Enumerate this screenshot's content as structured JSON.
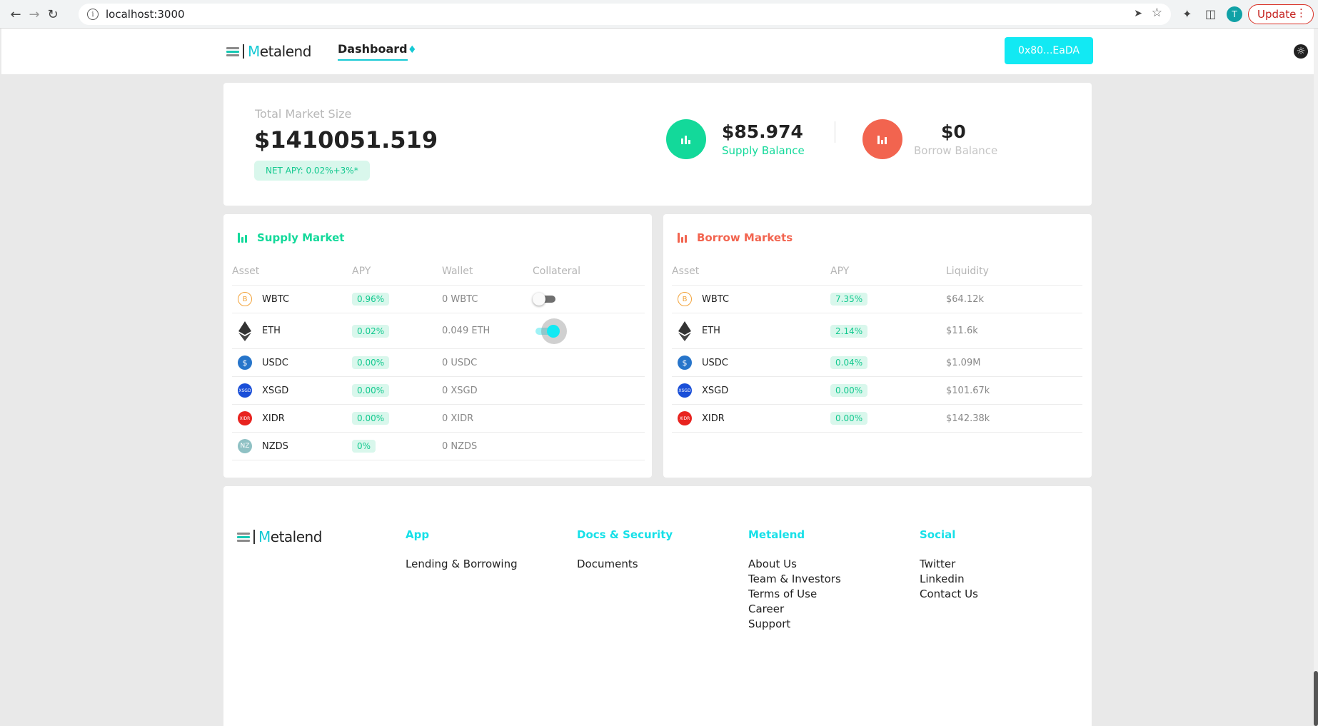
{
  "browser": {
    "url": "localhost:3000",
    "profile_initial": "T",
    "update_label": "Update"
  },
  "header": {
    "brand": "Metalend",
    "nav_dashboard": "Dashboard",
    "wallet_address": "0x80...EaDA"
  },
  "summary": {
    "total_market_label": "Total Market Size",
    "total_market_value": "$1410051.519",
    "net_apy": "NET APY: 0.02%+3%*",
    "supply_balance_value": "$85.974",
    "supply_balance_label": "Supply Balance",
    "borrow_balance_value": "$0",
    "borrow_balance_label": "Borrow Balance"
  },
  "supply_market": {
    "title": "Supply Market",
    "columns": [
      "Asset",
      "APY",
      "Wallet",
      "Collateral"
    ],
    "rows": [
      {
        "asset": "WBTC",
        "apy": "0.96%",
        "wallet": "0 WBTC",
        "collateral": false
      },
      {
        "asset": "ETH",
        "apy": "0.02%",
        "wallet": "0.049 ETH",
        "collateral": true
      },
      {
        "asset": "USDC",
        "apy": "0.00%",
        "wallet": "0 USDC"
      },
      {
        "asset": "XSGD",
        "apy": "0.00%",
        "wallet": "0 XSGD"
      },
      {
        "asset": "XIDR",
        "apy": "0.00%",
        "wallet": "0 XIDR"
      },
      {
        "asset": "NZDS",
        "apy": "0%",
        "wallet": "0 NZDS"
      }
    ]
  },
  "borrow_market": {
    "title": "Borrow Markets",
    "columns": [
      "Asset",
      "APY",
      "Liquidity"
    ],
    "rows": [
      {
        "asset": "WBTC",
        "apy": "7.35%",
        "liquidity": "$64.12k"
      },
      {
        "asset": "ETH",
        "apy": "2.14%",
        "liquidity": "$11.6k"
      },
      {
        "asset": "USDC",
        "apy": "0.04%",
        "liquidity": "$1.09M"
      },
      {
        "asset": "XSGD",
        "apy": "0.00%",
        "liquidity": "$101.67k"
      },
      {
        "asset": "XIDR",
        "apy": "0.00%",
        "liquidity": "$142.38k"
      }
    ]
  },
  "footer": {
    "brand": "Metalend",
    "app_title": "App",
    "app_links": [
      "Lending & Borrowing"
    ],
    "docs_title": "Docs & Security",
    "docs_links": [
      "Documents"
    ],
    "metalend_title": "Metalend",
    "metalend_links": [
      "About Us",
      "Team & Investors",
      "Terms of Use",
      "Career",
      "Support"
    ],
    "social_title": "Social",
    "social_links": [
      "Twitter",
      "Linkedin",
      "Contact Us"
    ]
  },
  "colors": {
    "accent": "#16e0e8",
    "supply": "#13d99a",
    "borrow": "#f2644f"
  },
  "icons": {
    "WBTC": "bitcoin-icon",
    "ETH": "ethereum-icon",
    "USDC": "usdc-icon",
    "XSGD": "xsgd-icon",
    "XIDR": "xidr-icon",
    "NZDS": "nzds-icon"
  }
}
